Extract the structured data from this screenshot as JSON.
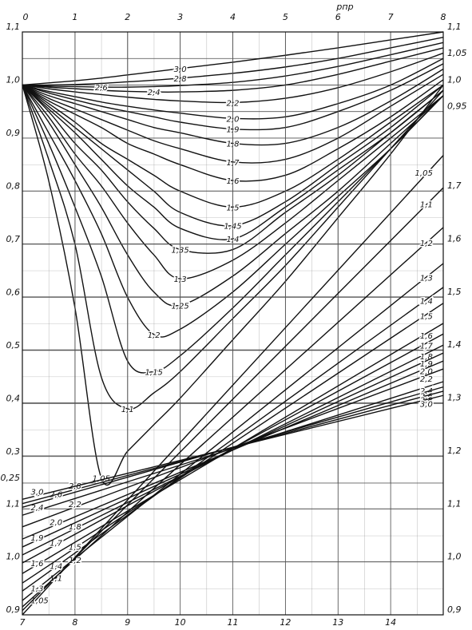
{
  "chart_data": [
    {
      "type": "line",
      "x_label": "pпр",
      "x": [
        0,
        0.5,
        1,
        1.5,
        2,
        2.5,
        3,
        4,
        5,
        6,
        7,
        8
      ],
      "xlim": [
        0,
        8
      ],
      "xticks": [
        0,
        1,
        2,
        3,
        4,
        5,
        6,
        7,
        8
      ],
      "ylim": [
        0.25,
        1.1
      ],
      "yticks": [
        {
          "value": 1.1,
          "label": "1,1"
        },
        {
          "value": 1.0,
          "label": "1,0"
        },
        {
          "value": 0.9,
          "label": "0,9"
        },
        {
          "value": 0.8,
          "label": "0,8"
        },
        {
          "value": 0.7,
          "label": "0,7"
        },
        {
          "value": 0.6,
          "label": "0,6"
        },
        {
          "value": 0.5,
          "label": "0,5"
        },
        {
          "value": 0.4,
          "label": "0,4"
        },
        {
          "value": 0.3,
          "label": "0,3"
        },
        {
          "value": 0.25,
          "label": "0,25"
        }
      ],
      "y2lim": [
        0.25,
        1.1
      ],
      "y2ticks": [
        {
          "value": 1.1,
          "label": "1,1"
        },
        {
          "value": 1.05,
          "label": "1,05"
        },
        {
          "value": 1.0,
          "label": "1,0"
        },
        {
          "value": 0.95,
          "label": "0,95"
        }
      ],
      "grid": true,
      "series": [
        {
          "name": "1,05",
          "color": "#111",
          "values": [
            1.0,
            0.82,
            0.58,
            0.26,
            0.31,
            0.36,
            0.41,
            0.52,
            0.63,
            0.75,
            0.87,
            1.0
          ]
        },
        {
          "name": "1,1",
          "color": "#111",
          "values": [
            1.0,
            0.86,
            0.7,
            0.45,
            0.39,
            0.42,
            0.46,
            0.56,
            0.66,
            0.77,
            0.88,
            0.99
          ]
        },
        {
          "name": "1,15",
          "color": "#111",
          "values": [
            1.0,
            0.89,
            0.77,
            0.64,
            0.48,
            0.46,
            0.49,
            0.58,
            0.68,
            0.78,
            0.88,
            0.98
          ]
        },
        {
          "name": "1,2",
          "color": "#111",
          "values": [
            1.0,
            0.91,
            0.82,
            0.72,
            0.6,
            0.53,
            0.54,
            0.61,
            0.7,
            0.79,
            0.88,
            0.98
          ]
        },
        {
          "name": "1,25",
          "color": "#111",
          "values": [
            1.0,
            0.93,
            0.85,
            0.77,
            0.68,
            0.61,
            0.585,
            0.64,
            0.72,
            0.8,
            0.89,
            0.98
          ]
        },
        {
          "name": "1,3",
          "color": "#111",
          "values": [
            1.0,
            0.94,
            0.87,
            0.81,
            0.74,
            0.68,
            0.635,
            0.67,
            0.74,
            0.82,
            0.9,
            0.98
          ]
        },
        {
          "name": "1,35",
          "color": "#111",
          "values": [
            1.0,
            0.95,
            0.89,
            0.84,
            0.78,
            0.73,
            0.69,
            0.69,
            0.76,
            0.83,
            0.91,
            0.99
          ]
        },
        {
          "name": "1,4",
          "color": "#111",
          "values": [
            1.0,
            0.955,
            0.91,
            0.86,
            0.81,
            0.77,
            0.73,
            0.71,
            0.77,
            0.84,
            0.91,
            0.99
          ]
        },
        {
          "name": "1,45",
          "color": "#111",
          "values": [
            1.0,
            0.96,
            0.92,
            0.88,
            0.84,
            0.8,
            0.76,
            0.735,
            0.78,
            0.85,
            0.92,
            1.0
          ]
        },
        {
          "name": "1,5",
          "color": "#111",
          "values": [
            1.0,
            0.965,
            0.93,
            0.89,
            0.86,
            0.83,
            0.8,
            0.77,
            0.8,
            0.86,
            0.93,
            1.0
          ]
        },
        {
          "name": "1,6",
          "color": "#111",
          "values": [
            1.0,
            0.97,
            0.945,
            0.92,
            0.89,
            0.87,
            0.85,
            0.82,
            0.83,
            0.88,
            0.94,
            1.01
          ]
        },
        {
          "name": "1,7",
          "color": "#111",
          "values": [
            1.0,
            0.975,
            0.955,
            0.935,
            0.915,
            0.895,
            0.88,
            0.855,
            0.86,
            0.9,
            0.96,
            1.02
          ]
        },
        {
          "name": "1,8",
          "color": "#111",
          "values": [
            1.0,
            0.98,
            0.965,
            0.95,
            0.935,
            0.92,
            0.91,
            0.89,
            0.89,
            0.92,
            0.97,
            1.03
          ]
        },
        {
          "name": "1,9",
          "color": "#111",
          "values": [
            1.0,
            0.985,
            0.972,
            0.96,
            0.95,
            0.94,
            0.93,
            0.917,
            0.92,
            0.95,
            0.99,
            1.04
          ]
        },
        {
          "name": "2,0",
          "color": "#111",
          "values": [
            1.0,
            0.988,
            0.978,
            0.968,
            0.96,
            0.953,
            0.947,
            0.937,
            0.94,
            0.965,
            1.0,
            1.05
          ]
        },
        {
          "name": "2,2",
          "color": "#111",
          "values": [
            1.0,
            0.993,
            0.987,
            0.982,
            0.977,
            0.973,
            0.97,
            0.967,
            0.975,
            0.995,
            1.025,
            1.06
          ]
        },
        {
          "name": "2,4",
          "color": "#111",
          "values": [
            1.0,
            0.996,
            0.993,
            0.99,
            0.988,
            0.987,
            0.987,
            0.99,
            1.0,
            1.02,
            1.045,
            1.07
          ]
        },
        {
          "name": "2,6",
          "color": "#111",
          "values": [
            1.0,
            0.998,
            0.997,
            0.996,
            0.996,
            0.997,
            0.999,
            1.005,
            1.017,
            1.035,
            1.057,
            1.08
          ]
        },
        {
          "name": "2,8",
          "color": "#111",
          "values": [
            1.0,
            1.0,
            1.001,
            1.003,
            1.006,
            1.009,
            1.013,
            1.022,
            1.034,
            1.05,
            1.07,
            1.09
          ]
        },
        {
          "name": "3,0",
          "color": "#111",
          "values": [
            1.0,
            1.004,
            1.008,
            1.013,
            1.019,
            1.025,
            1.031,
            1.043,
            1.056,
            1.07,
            1.085,
            1.1
          ]
        }
      ]
    },
    {
      "type": "line",
      "x": [
        7,
        15
      ],
      "xlim": [
        7,
        15
      ],
      "xticks": [
        7,
        8,
        9,
        10,
        11,
        12,
        13,
        14
      ],
      "ylim": [
        0.9,
        2.0
      ],
      "yticks": [
        {
          "value": 1.1,
          "label": "1,1"
        },
        {
          "value": 1.0,
          "label": "1,0"
        },
        {
          "value": 0.9,
          "label": "0,9"
        }
      ],
      "y2lim": [
        0.9,
        2.0
      ],
      "y2ticks": [
        {
          "value": 1.7,
          "label": "1,7"
        },
        {
          "value": 1.6,
          "label": "1,6"
        },
        {
          "value": 1.5,
          "label": "1,5"
        },
        {
          "value": 1.4,
          "label": "1,4"
        },
        {
          "value": 1.3,
          "label": "1,3"
        },
        {
          "value": 1.2,
          "label": "1,2"
        },
        {
          "value": 1.1,
          "label": "1,1"
        },
        {
          "value": 1.0,
          "label": "1,0"
        },
        {
          "value": 0.9,
          "label": "0,9"
        }
      ],
      "grid": true,
      "series": [
        {
          "name": "1,05",
          "color": "#111",
          "values": [
            0.9,
            1.767
          ]
        },
        {
          "name": "1,1",
          "color": "#111",
          "values": [
            0.908,
            1.706
          ]
        },
        {
          "name": "1,2",
          "color": "#111",
          "values": [
            0.915,
            1.631
          ]
        },
        {
          "name": "1,3",
          "color": "#111",
          "values": [
            0.927,
            1.563
          ]
        },
        {
          "name": "1,4",
          "color": "#111",
          "values": [
            0.945,
            1.518
          ]
        },
        {
          "name": "1,5",
          "color": "#111",
          "values": [
            0.96,
            1.488
          ]
        },
        {
          "name": "1,6",
          "color": "#111",
          "values": [
            0.978,
            1.45
          ]
        },
        {
          "name": "1,7",
          "color": "#111",
          "values": [
            0.998,
            1.43
          ]
        },
        {
          "name": "1,8",
          "color": "#111",
          "values": [
            1.013,
            1.409
          ]
        },
        {
          "name": "1,9",
          "color": "#111",
          "values": [
            1.028,
            1.394
          ]
        },
        {
          "name": "2,0",
          "color": "#111",
          "values": [
            1.043,
            1.379
          ]
        },
        {
          "name": "2,2",
          "color": "#111",
          "values": [
            1.066,
            1.364
          ]
        },
        {
          "name": "2,4",
          "color": "#111",
          "values": [
            1.088,
            1.34
          ]
        },
        {
          "name": "2,6",
          "color": "#111",
          "values": [
            1.103,
            1.33
          ]
        },
        {
          "name": "2,8",
          "color": "#111",
          "values": [
            1.11,
            1.322
          ]
        },
        {
          "name": "3,0",
          "color": "#111",
          "values": [
            1.118,
            1.314
          ]
        }
      ]
    }
  ]
}
